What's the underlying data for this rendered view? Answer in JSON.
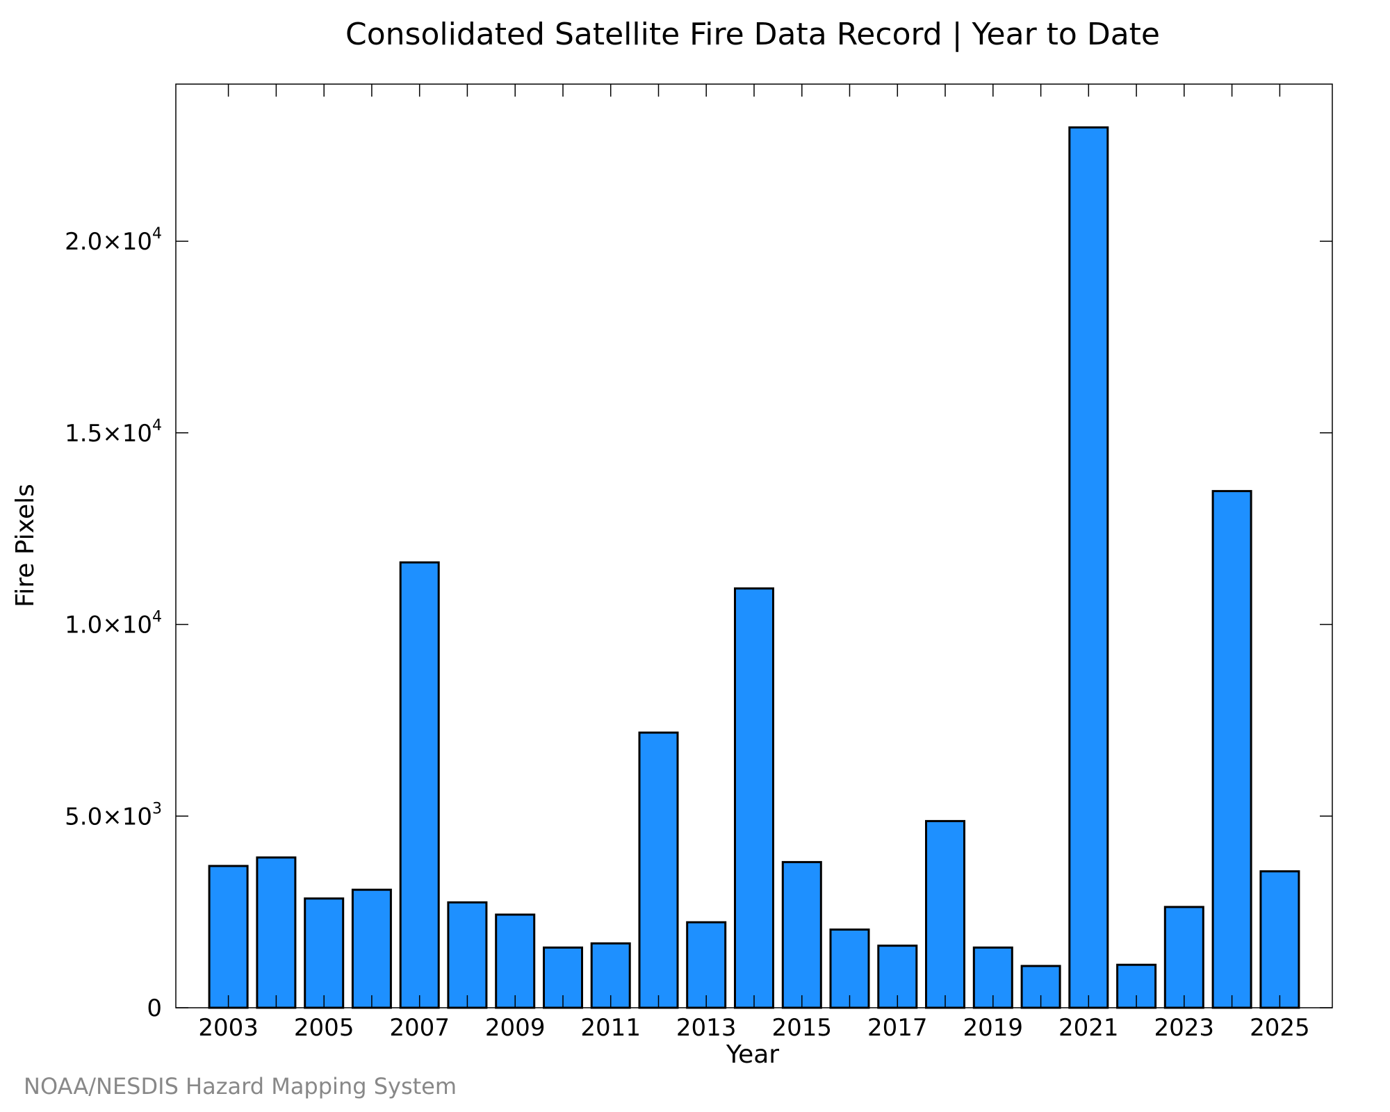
{
  "colors": {
    "bar_fill": "#1e90ff",
    "bar_stroke": "#000000",
    "frame": "#000000",
    "credit": "#888888"
  },
  "credit": "NOAA/NESDIS Hazard Mapping System",
  "chart_data": {
    "type": "bar",
    "title": "Consolidated Satellite Fire Data Record | Year to Date",
    "xlabel": "Year",
    "ylabel": "Fire Pixels",
    "categories": [
      "2003",
      "2004",
      "2005",
      "2006",
      "2007",
      "2008",
      "2009",
      "2010",
      "2011",
      "2012",
      "2013",
      "2014",
      "2015",
      "2016",
      "2017",
      "2018",
      "2019",
      "2020",
      "2021",
      "2022",
      "2023",
      "2024",
      "2025"
    ],
    "values": [
      3700,
      3920,
      2850,
      3080,
      11620,
      2750,
      2430,
      1570,
      1680,
      7180,
      2230,
      10940,
      3800,
      2040,
      1620,
      4870,
      1570,
      1090,
      22970,
      1120,
      2630,
      13480,
      3560
    ],
    "x_tick_labels": [
      "2003",
      "2005",
      "2007",
      "2009",
      "2011",
      "2013",
      "2015",
      "2017",
      "2019",
      "2021",
      "2023",
      "2025"
    ],
    "y_ticks": [
      {
        "value": 0,
        "mantissa": "0",
        "exponent": ""
      },
      {
        "value": 5000,
        "mantissa": "5.0×10",
        "exponent": "3"
      },
      {
        "value": 10000,
        "mantissa": "1.0×10",
        "exponent": "4"
      },
      {
        "value": 15000,
        "mantissa": "1.5×10",
        "exponent": "4"
      },
      {
        "value": 20000,
        "mantissa": "2.0×10",
        "exponent": "4"
      }
    ],
    "ylim": [
      0,
      24100
    ],
    "grid": false,
    "legend": "none"
  }
}
